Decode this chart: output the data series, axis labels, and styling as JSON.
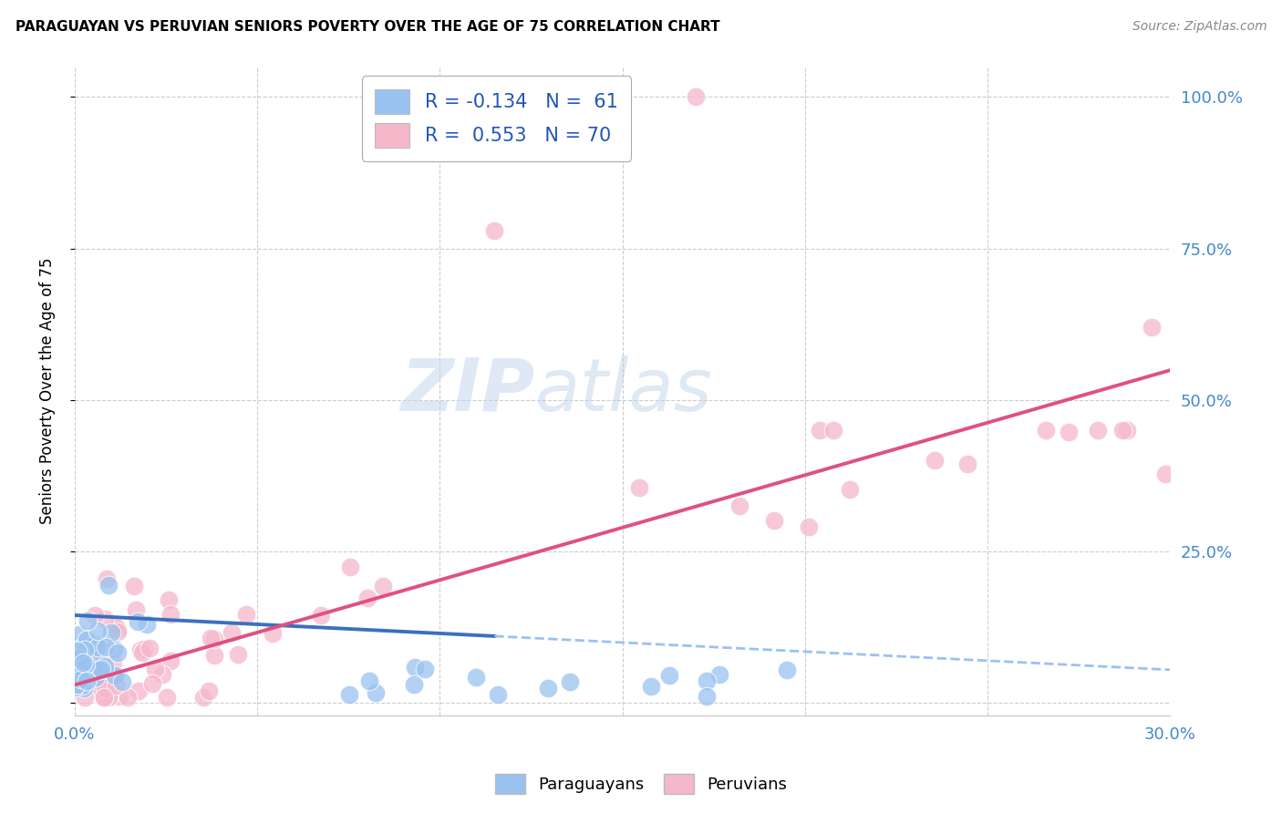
{
  "title": "PARAGUAYAN VS PERUVIAN SENIORS POVERTY OVER THE AGE OF 75 CORRELATION CHART",
  "source": "Source: ZipAtlas.com",
  "ylabel": "Seniors Poverty Over the Age of 75",
  "xlim": [
    0.0,
    0.3
  ],
  "ylim": [
    -0.02,
    1.05
  ],
  "xticks": [
    0.0,
    0.05,
    0.1,
    0.15,
    0.2,
    0.25,
    0.3
  ],
  "xticklabels": [
    "0.0%",
    "",
    "",
    "",
    "",
    "",
    "30.0%"
  ],
  "yticks": [
    0.0,
    0.25,
    0.5,
    0.75,
    1.0
  ],
  "yticklabels": [
    "",
    "25.0%",
    "50.0%",
    "75.0%",
    "100.0%"
  ],
  "bg_color": "#ffffff",
  "grid_color": "#cccccc",
  "blue_color": "#99c2f0",
  "pink_color": "#f5b8cb",
  "blue_line_color": "#3a70c0",
  "pink_line_color": "#e05080",
  "blue_dash_color": "#99c2f0",
  "watermark_zip": "ZIP",
  "watermark_atlas": "atlas"
}
